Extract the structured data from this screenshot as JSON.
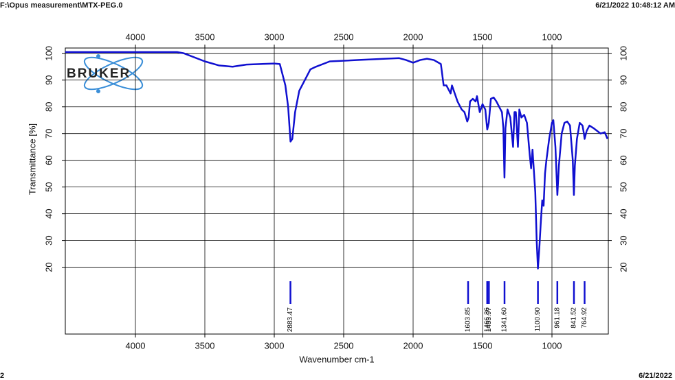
{
  "header": {
    "file": "F:\\Opus measurement\\MTX-PEG.0",
    "datetime": "6/21/2022 10:48:12 AM"
  },
  "footer": {
    "page": "2",
    "date": "6/21/2022"
  },
  "logo": "BRUKER",
  "chart_data": {
    "type": "line",
    "xlabel": "Wavenumber cm-1",
    "ylabel": "Transmittance [%]",
    "color": "#1010d0",
    "xlim": [
      4505,
      594
    ],
    "ylim": [
      -5,
      102
    ],
    "xticks": [
      4000,
      3500,
      3000,
      2500,
      2000,
      1500,
      1000
    ],
    "yticks": [
      20,
      30,
      40,
      50,
      60,
      70,
      80,
      90,
      100
    ],
    "grid": true,
    "x": [
      4505,
      4000,
      3700,
      3650,
      3500,
      3400,
      3300,
      3200,
      3000,
      2960,
      2940,
      2920,
      2900,
      2883,
      2870,
      2850,
      2820,
      2780,
      2740,
      2700,
      2600,
      2400,
      2200,
      2100,
      2050,
      2000,
      1950,
      1900,
      1850,
      1800,
      1780,
      1760,
      1740,
      1730,
      1720,
      1700,
      1680,
      1650,
      1630,
      1610,
      1600,
      1590,
      1570,
      1550,
      1540,
      1520,
      1500,
      1480,
      1466,
      1455,
      1440,
      1420,
      1400,
      1380,
      1360,
      1350,
      1342,
      1335,
      1320,
      1300,
      1280,
      1270,
      1260,
      1245,
      1235,
      1220,
      1200,
      1180,
      1160,
      1150,
      1140,
      1120,
      1110,
      1101,
      1090,
      1080,
      1070,
      1060,
      1050,
      1040,
      1020,
      1000,
      990,
      975,
      961,
      950,
      930,
      910,
      890,
      870,
      850,
      842,
      835,
      820,
      800,
      780,
      770,
      765,
      750,
      730,
      700,
      650,
      620,
      600
    ],
    "values": [
      100.5,
      100.5,
      100.5,
      100,
      97,
      95.5,
      95,
      95.8,
      96.2,
      96,
      92,
      88,
      80,
      67,
      68,
      78,
      86,
      90,
      94,
      95,
      97,
      97.5,
      98,
      98.2,
      97.5,
      96.5,
      97.5,
      98,
      97.5,
      96,
      88,
      88,
      86,
      85,
      88,
      85,
      82,
      79,
      78,
      74.5,
      76,
      82,
      83,
      82,
      84,
      78,
      81,
      79,
      71.5,
      74,
      83,
      83.5,
      82,
      80,
      78,
      72,
      53.5,
      72,
      79,
      76,
      65,
      78,
      78,
      65,
      79,
      76,
      77,
      74,
      62,
      57,
      64,
      48,
      30,
      19.5,
      28,
      37,
      45,
      43,
      55,
      60,
      68,
      74,
      75,
      65,
      47,
      58,
      70,
      74,
      74.5,
      73,
      60,
      47,
      58,
      68,
      74,
      73,
      70,
      68,
      71,
      73,
      72,
      70,
      70.5,
      68
    ],
    "peaks": [
      {
        "value": 2883.47,
        "label": "2883.47"
      },
      {
        "value": 1603.85,
        "label": "1603.85"
      },
      {
        "value": 1466.36,
        "label": "1466.36"
      },
      {
        "value": 1453.97,
        "label": "1453.97"
      },
      {
        "value": 1341.6,
        "label": "1341.60"
      },
      {
        "value": 1100.9,
        "label": "1100.90"
      },
      {
        "value": 961.18,
        "label": "961.18"
      },
      {
        "value": 841.52,
        "label": "841.52"
      },
      {
        "value": 764.92,
        "label": "764.92"
      }
    ]
  }
}
